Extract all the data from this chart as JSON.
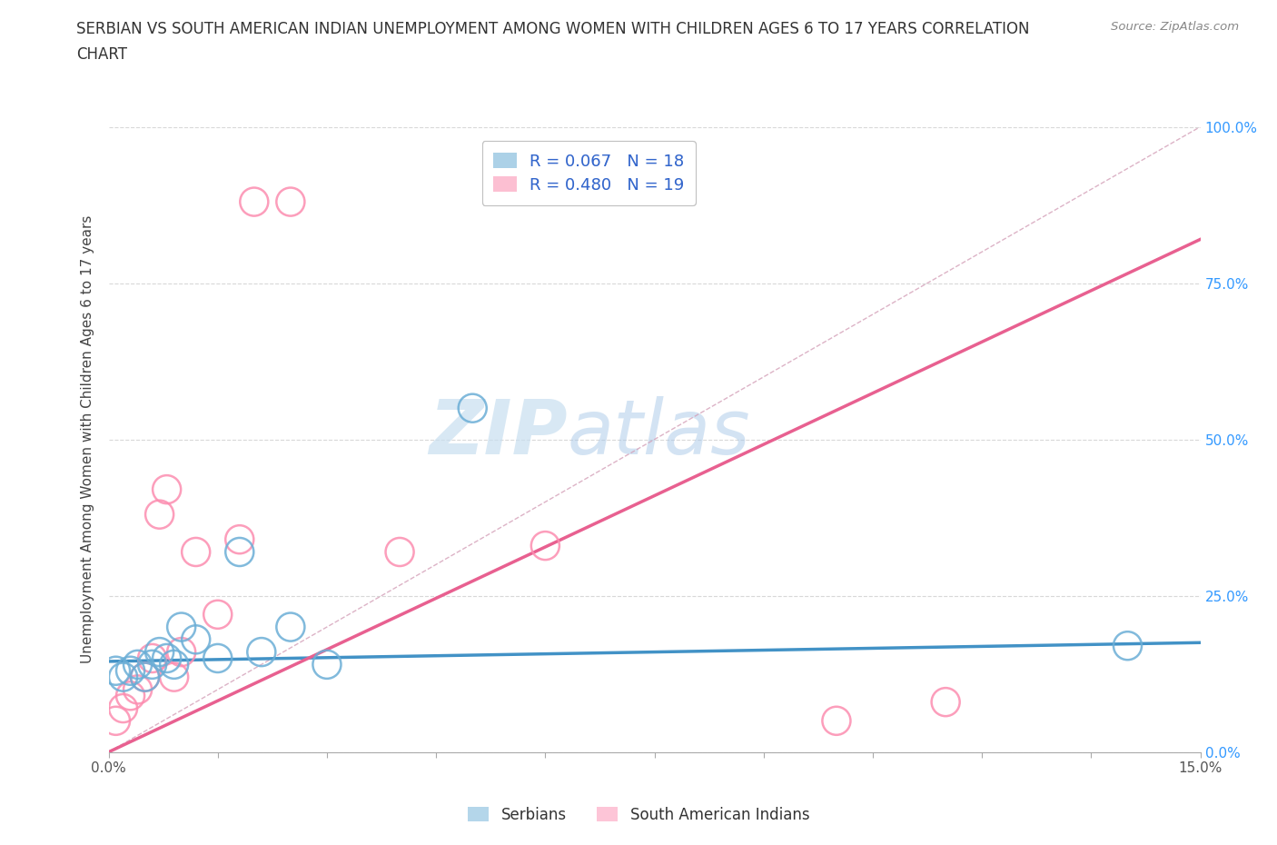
{
  "title_line1": "SERBIAN VS SOUTH AMERICAN INDIAN UNEMPLOYMENT AMONG WOMEN WITH CHILDREN AGES 6 TO 17 YEARS CORRELATION",
  "title_line2": "CHART",
  "source": "Source: ZipAtlas.com",
  "ylabel": "Unemployment Among Women with Children Ages 6 to 17 years",
  "xlim": [
    0.0,
    0.15
  ],
  "ylim": [
    0.0,
    1.0
  ],
  "xticks_minor": [
    0.0,
    0.015,
    0.03,
    0.045,
    0.06,
    0.075,
    0.09,
    0.105,
    0.12,
    0.135,
    0.15
  ],
  "xtick_end_labels": [
    "0.0%",
    "15.0%"
  ],
  "yticks": [
    0.0,
    0.25,
    0.5,
    0.75,
    1.0
  ],
  "ytick_labels_right": [
    "0.0%",
    "25.0%",
    "50.0%",
    "75.0%",
    "100.0%"
  ],
  "serbian_color": "#6baed6",
  "sai_color": "#fc8db0",
  "serbian_trend_color": "#4292c6",
  "sai_trend_color": "#e86090",
  "ref_line_color": "#d4a0b8",
  "serbian_R": 0.067,
  "serbian_N": 18,
  "sai_R": 0.48,
  "sai_N": 19,
  "serbian_x": [
    0.001,
    0.002,
    0.003,
    0.004,
    0.005,
    0.006,
    0.007,
    0.008,
    0.009,
    0.01,
    0.012,
    0.015,
    0.018,
    0.021,
    0.025,
    0.03,
    0.05,
    0.14
  ],
  "serbian_y": [
    0.13,
    0.12,
    0.13,
    0.14,
    0.12,
    0.14,
    0.16,
    0.15,
    0.14,
    0.2,
    0.18,
    0.15,
    0.32,
    0.16,
    0.2,
    0.14,
    0.55,
    0.17
  ],
  "sai_x": [
    0.001,
    0.002,
    0.003,
    0.004,
    0.005,
    0.006,
    0.007,
    0.008,
    0.009,
    0.01,
    0.012,
    0.015,
    0.018,
    0.02,
    0.025,
    0.06,
    0.1,
    0.115,
    0.04
  ],
  "sai_y": [
    0.05,
    0.07,
    0.09,
    0.1,
    0.12,
    0.15,
    0.38,
    0.42,
    0.12,
    0.16,
    0.32,
    0.22,
    0.34,
    0.88,
    0.88,
    0.33,
    0.05,
    0.08,
    0.32
  ],
  "serbian_trend_x": [
    0.0,
    0.15
  ],
  "serbian_trend_y": [
    0.145,
    0.175
  ],
  "sai_trend_x": [
    0.0,
    0.15
  ],
  "sai_trend_y": [
    0.0,
    0.82
  ],
  "watermark_zip": "ZIP",
  "watermark_atlas": "atlas",
  "background_color": "#ffffff",
  "grid_color": "#d8d8d8",
  "legend_label_color": "#3366cc",
  "right_tick_color": "#3399ff"
}
